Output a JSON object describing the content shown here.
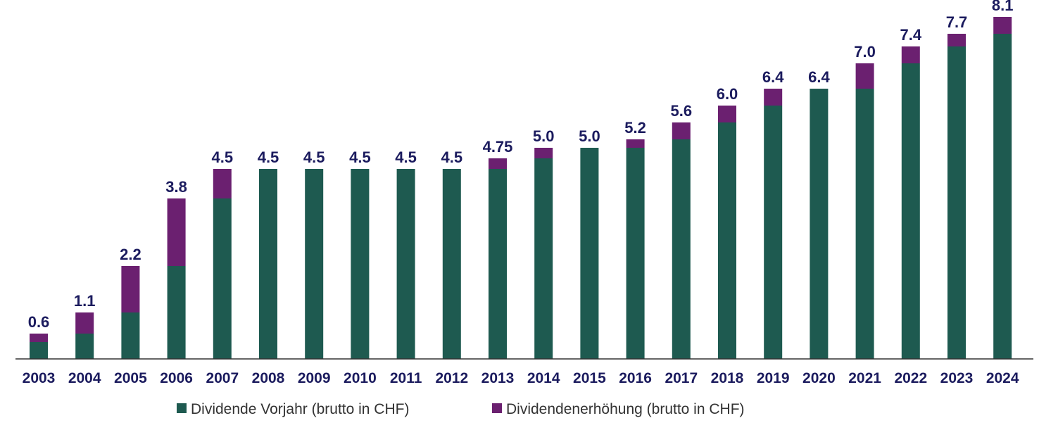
{
  "chart_data": {
    "type": "bar",
    "stacked": true,
    "title": "",
    "xlabel": "",
    "ylabel": "",
    "ylim": [
      0,
      8.5
    ],
    "categories": [
      "2003",
      "2004",
      "2005",
      "2006",
      "2007",
      "2008",
      "2009",
      "2010",
      "2011",
      "2012",
      "2013",
      "2014",
      "2015",
      "2016",
      "2017",
      "2018",
      "2019",
      "2020",
      "2021",
      "2022",
      "2023",
      "2024"
    ],
    "series": [
      {
        "name": "Dividende Vorjahr (brutto in CHF)",
        "color": "#1e5a50",
        "values": [
          0.4,
          0.6,
          1.1,
          2.2,
          3.8,
          4.5,
          4.5,
          4.5,
          4.5,
          4.5,
          4.5,
          4.75,
          5.0,
          5.0,
          5.2,
          5.6,
          6.0,
          6.4,
          6.4,
          7.0,
          7.4,
          7.7
        ]
      },
      {
        "name": "Dividendenerhöhung (brutto in CHF)",
        "color": "#6b2070",
        "values": [
          0.2,
          0.5,
          1.1,
          1.6,
          0.7,
          0.0,
          0.0,
          0.0,
          0.0,
          0.0,
          0.25,
          0.25,
          0.0,
          0.2,
          0.4,
          0.4,
          0.4,
          0.0,
          0.6,
          0.4,
          0.3,
          0.4
        ]
      }
    ],
    "data_labels": [
      "0.6",
      "1.1",
      "2.2",
      "3.8",
      "4.5",
      "4.5",
      "4.5",
      "4.5",
      "4.5",
      "4.5",
      "4.75",
      "5.0",
      "5.0",
      "5.2",
      "5.6",
      "6.0",
      "6.4",
      "6.4",
      "7.0",
      "7.4",
      "7.7",
      "8.1"
    ],
    "label_color": "#1b1b5e",
    "axis_color": "#333333",
    "legend_position": "bottom"
  }
}
